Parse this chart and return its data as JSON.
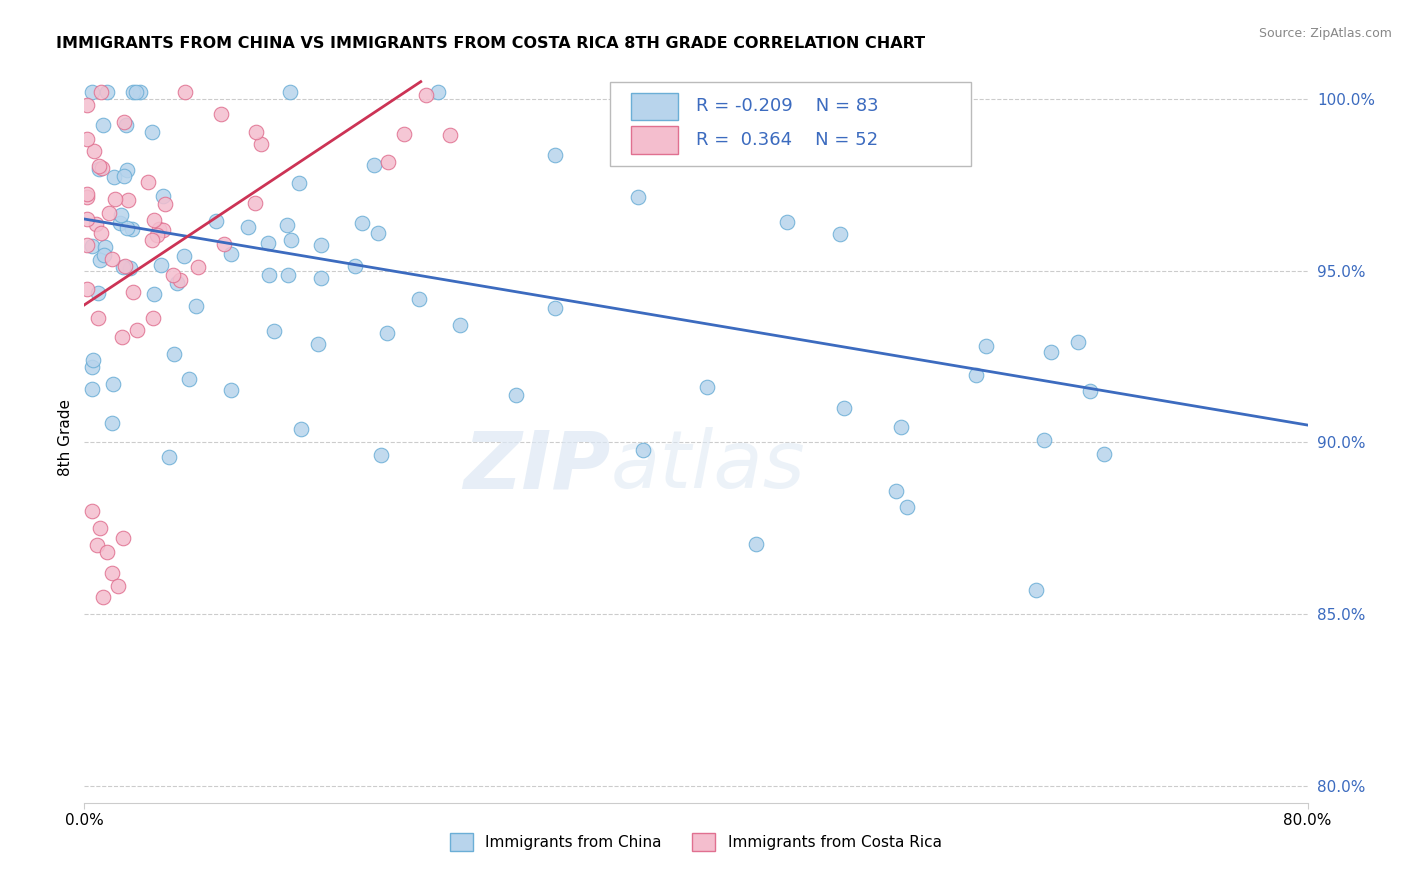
{
  "title": "IMMIGRANTS FROM CHINA VS IMMIGRANTS FROM COSTA RICA 8TH GRADE CORRELATION CHART",
  "source_text": "Source: ZipAtlas.com",
  "ylabel": "8th Grade",
  "xlim": [
    0.0,
    0.8
  ],
  "ylim": [
    0.795,
    1.008
  ],
  "ytick_positions": [
    0.8,
    0.85,
    0.9,
    0.95,
    1.0
  ],
  "china_color": "#b8d4ec",
  "china_edge": "#6baed6",
  "costa_rica_color": "#f4bece",
  "costa_rica_edge": "#e07090",
  "trend_china_color": "#3c6bbf",
  "trend_costa_rica_color": "#cc3355",
  "R_china": -0.209,
  "N_china": 83,
  "R_costa_rica": 0.364,
  "N_costa_rica": 52,
  "watermark_zip": "ZIP",
  "watermark_atlas": "atlas",
  "legend_china": "Immigrants from China",
  "legend_costa_rica": "Immigrants from Costa Rica",
  "china_trend_x0": 0.0,
  "china_trend_x1": 0.8,
  "china_trend_y0": 0.965,
  "china_trend_y1": 0.905,
  "costa_trend_x0": 0.0,
  "costa_trend_x1": 0.22,
  "costa_trend_y0": 0.94,
  "costa_trend_y1": 1.005
}
